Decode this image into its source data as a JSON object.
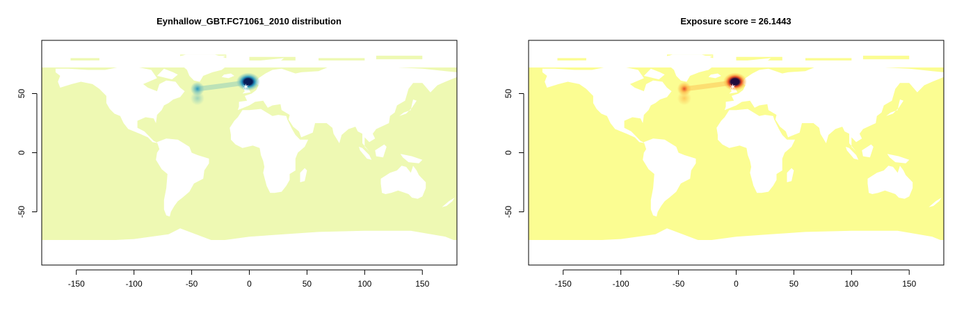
{
  "chart_data": [
    {
      "type": "heatmap",
      "title": "Eynhallow_GBT.FC71061_2010 distribution",
      "xlabel": "",
      "ylabel": "",
      "xlim": [
        -180,
        180
      ],
      "ylim": [
        -95,
        95
      ],
      "x_ticks": [
        -150,
        -100,
        -50,
        0,
        50,
        100,
        150
      ],
      "y_ticks": [
        50,
        0,
        -50
      ],
      "grid": false,
      "colors": {
        "background": "#eef9b3",
        "low": "#7fc6bd",
        "mid": "#1d91c0",
        "high": "#081d58"
      },
      "hotspots": [
        {
          "lon": -1,
          "lat": 60,
          "intensity": 1.0
        },
        {
          "lon": -45,
          "lat": 54,
          "intensity": 0.6
        },
        {
          "lon": -45,
          "lat": 46,
          "intensity": 0.25
        }
      ]
    },
    {
      "type": "heatmap",
      "title": "Exposure score = 26.1443",
      "xlabel": "",
      "ylabel": "",
      "xlim": [
        -180,
        180
      ],
      "ylim": [
        -95,
        95
      ],
      "x_ticks": [
        -150,
        -100,
        -50,
        0,
        50,
        100,
        150
      ],
      "y_ticks": [
        50,
        0,
        -50
      ],
      "grid": false,
      "colors": {
        "background": "#fbfd92",
        "low": "#fdb84a",
        "mid": "#e3411f",
        "high": "#1f0a3d"
      },
      "hotspots": [
        {
          "lon": -1,
          "lat": 60,
          "intensity": 1.0
        },
        {
          "lon": -45,
          "lat": 54,
          "intensity": 0.6
        },
        {
          "lon": -45,
          "lat": 46,
          "intensity": 0.25
        }
      ]
    }
  ]
}
